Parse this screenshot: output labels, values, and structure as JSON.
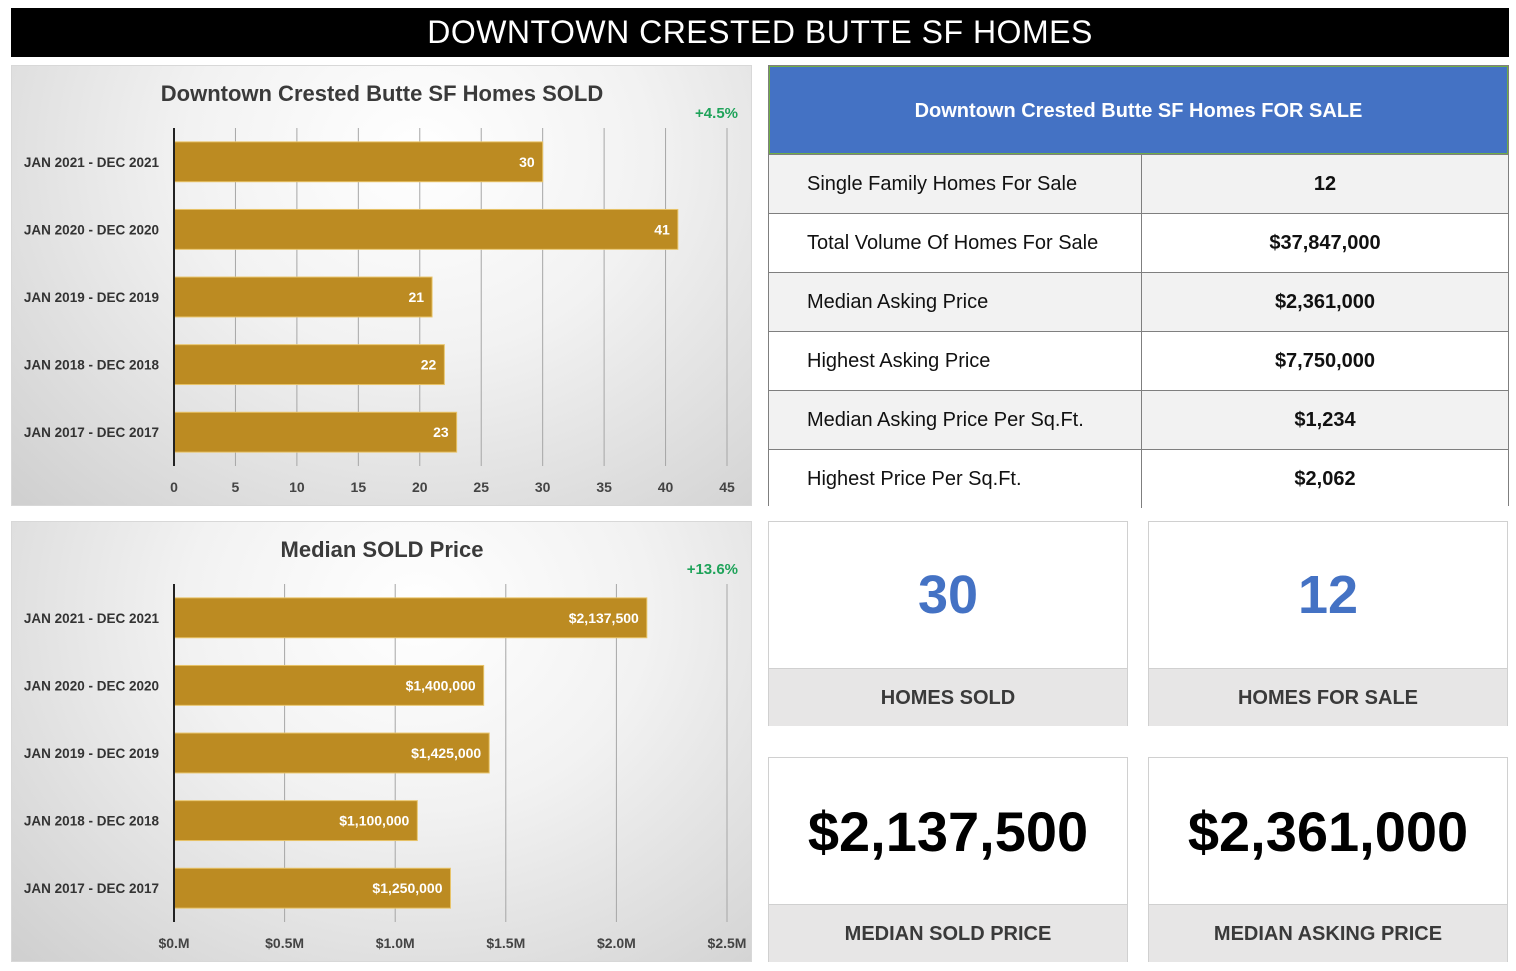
{
  "banner": {
    "title": "DOWNTOWN CRESTED BUTTE SF HOMES"
  },
  "chart_data": [
    {
      "type": "bar",
      "orientation": "horizontal",
      "title": "Downtown Crested Butte SF Homes SOLD",
      "annotation": "+4.5%",
      "categories": [
        "JAN 2021 - DEC 2021",
        "JAN 2020 - DEC 2020",
        "JAN 2019 - DEC 2019",
        "JAN 2018 - DEC 2018",
        "JAN 2017 - DEC 2017"
      ],
      "values": [
        30,
        41,
        21,
        22,
        23
      ],
      "data_labels": [
        "30",
        "41",
        "21",
        "22",
        "23"
      ],
      "xlim": [
        0,
        45
      ],
      "xticks": [
        0,
        5,
        10,
        15,
        20,
        25,
        30,
        35,
        40,
        45
      ],
      "xtick_labels": [
        "0",
        "5",
        "10",
        "15",
        "20",
        "25",
        "30",
        "35",
        "40",
        "45"
      ],
      "xlabel": "",
      "ylabel": "",
      "grid": true,
      "bar_color": "#bc8b22"
    },
    {
      "type": "bar",
      "orientation": "horizontal",
      "title": "Median SOLD Price",
      "annotation": "+13.6%",
      "categories": [
        "JAN 2021 - DEC 2021",
        "JAN 2020 - DEC 2020",
        "JAN 2019 - DEC 2019",
        "JAN 2018 - DEC 2018",
        "JAN 2017 - DEC 2017"
      ],
      "values": [
        2137500,
        1400000,
        1425000,
        1100000,
        1250000
      ],
      "data_labels": [
        "$2,137,500",
        "$1,400,000",
        "$1,425,000",
        "$1,100,000",
        "$1,250,000"
      ],
      "xlim": [
        0,
        2500000
      ],
      "xticks": [
        0,
        500000,
        1000000,
        1500000,
        2000000,
        2500000
      ],
      "xtick_labels": [
        "$0.M",
        "$0.5M",
        "$1.0M",
        "$1.5M",
        "$2.0M",
        "$2.5M"
      ],
      "xlabel": "",
      "ylabel": "",
      "grid": true,
      "bar_color": "#bc8b22"
    }
  ],
  "for_sale_table": {
    "title": "Downtown Crested Butte SF Homes FOR SALE",
    "rows": [
      {
        "label": "Single Family Homes For Sale",
        "value": "12"
      },
      {
        "label": "Total Volume Of Homes For Sale",
        "value": "$37,847,000"
      },
      {
        "label": "Median Asking Price",
        "value": "$2,361,000"
      },
      {
        "label": "Highest Asking Price",
        "value": "$7,750,000"
      },
      {
        "label": "Median Asking Price Per Sq.Ft.",
        "value": "$1,234"
      },
      {
        "label": "Highest Price Per Sq.Ft.",
        "value": "$2,062"
      }
    ]
  },
  "kpis": [
    {
      "value": "30",
      "caption": "HOMES SOLD"
    },
    {
      "value": "12",
      "caption": "HOMES FOR SALE"
    },
    {
      "value": "$2,137,500",
      "caption": "MEDIAN SOLD PRICE"
    },
    {
      "value": "$2,361,000",
      "caption": "MEDIAN ASKING PRICE"
    }
  ],
  "colors": {
    "accent_blue": "#4472c4",
    "bar_gold": "#bc8b22",
    "positive_green": "#1fa35a"
  }
}
